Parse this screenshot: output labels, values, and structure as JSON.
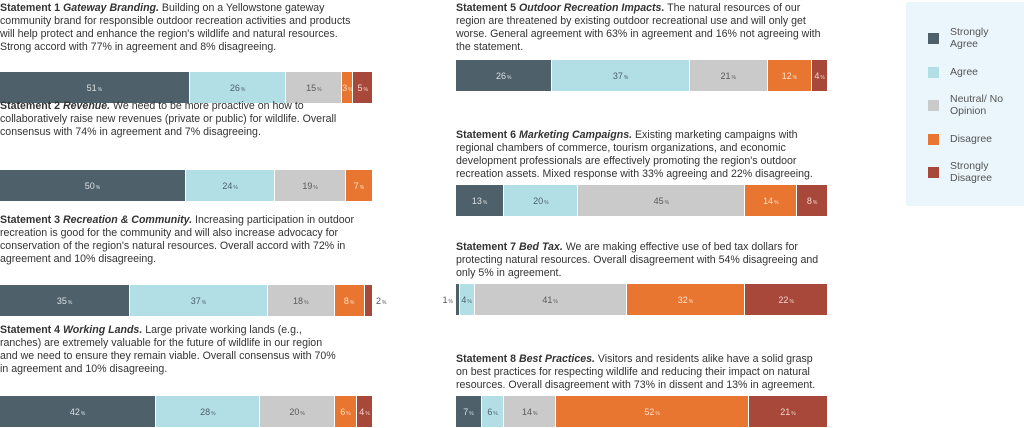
{
  "chart_data": {
    "type": "bar",
    "orientation": "horizontal-stacked-100",
    "legend_placement": "right",
    "categories": [
      "Strongly Agree",
      "Agree",
      "Neutral/ No Opinion",
      "Disagree",
      "Strongly Disagree"
    ],
    "colors": [
      "#4e6069",
      "#b2dfe6",
      "#cacaca",
      "#e87530",
      "#a8483a"
    ],
    "statements": [
      {
        "num": "Statement 1",
        "title": "Gateway Branding.",
        "text": " Building on a Yellowstone gateway community brand for responsible outdoor recreation activities and products will help protect and enhance the region's wildlife and natural resources. Strong accord with 77% in agreement and 8% disagreeing.",
        "values": [
          51,
          26,
          15,
          3,
          5
        ]
      },
      {
        "num": "Statement 2",
        "title": "Revenue.",
        "text": " We need to be more proactive on how to collaboratively raise new revenues (private or public) for wildlife. Overall consensus with 74% in agreement and 7% disagreeing.",
        "values": [
          50,
          24,
          19,
          7,
          0
        ]
      },
      {
        "num": "Statement 3",
        "title": "Recreation & Community.",
        "text": " Increasing participation in outdoor recreation is good for the community and will also increase advocacy for conservation of the region's natural resources. Overall accord with 72% in agreement and 10% disagreeing.",
        "values": [
          35,
          37,
          18,
          8,
          2
        ]
      },
      {
        "num": "Statement 4",
        "title": "Working Lands.",
        "text": " Large private working lands (e.g., ranches) are extremely valuable for the future of wildlife in our region and we need to ensure they remain viable. Overall consensus with 70% in agreement and 10% disagreeing.",
        "values": [
          42,
          28,
          20,
          6,
          4
        ]
      },
      {
        "num": "Statement 5",
        "title": "Outdoor Recreation Impacts.",
        "text": " The natural resources of our region are threatened by existing outdoor recreational use and will only get worse. General agreement with 63% in agreement and 16% not agreeing with the statement.",
        "values": [
          26,
          37,
          21,
          12,
          4
        ]
      },
      {
        "num": "Statement 6",
        "title": "Marketing Campaigns.",
        "text": " Existing marketing campaigns with regional chambers of commerce, tourism organizations, and economic development professionals are effectively promoting the region's outdoor recreation assets. Mixed response with 33% agreeing and 22% disagreeing.",
        "values": [
          13,
          20,
          45,
          14,
          8
        ]
      },
      {
        "num": "Statement 7",
        "title": "Bed Tax.",
        "text": " We are making effective use of bed tax dollars for protecting natural resources. Overall disagreement with 54% disagreeing and only 5% in agreement.",
        "values": [
          1,
          4,
          41,
          32,
          22
        ]
      },
      {
        "num": "Statement 8",
        "title": "Best Practices.",
        "text": " Visitors and residents alike have a solid grasp on best practices for respecting wildlife and reducing their impact on natural resources. Overall disagreement with 73% in dissent and 13% in agreement.",
        "values": [
          7,
          6,
          14,
          52,
          21
        ]
      }
    ],
    "legend": [
      "Strongly Agree",
      "Agree",
      "Neutral/ No Opinion",
      "Disagree",
      "Strongly Disagree"
    ],
    "unit": "%"
  }
}
